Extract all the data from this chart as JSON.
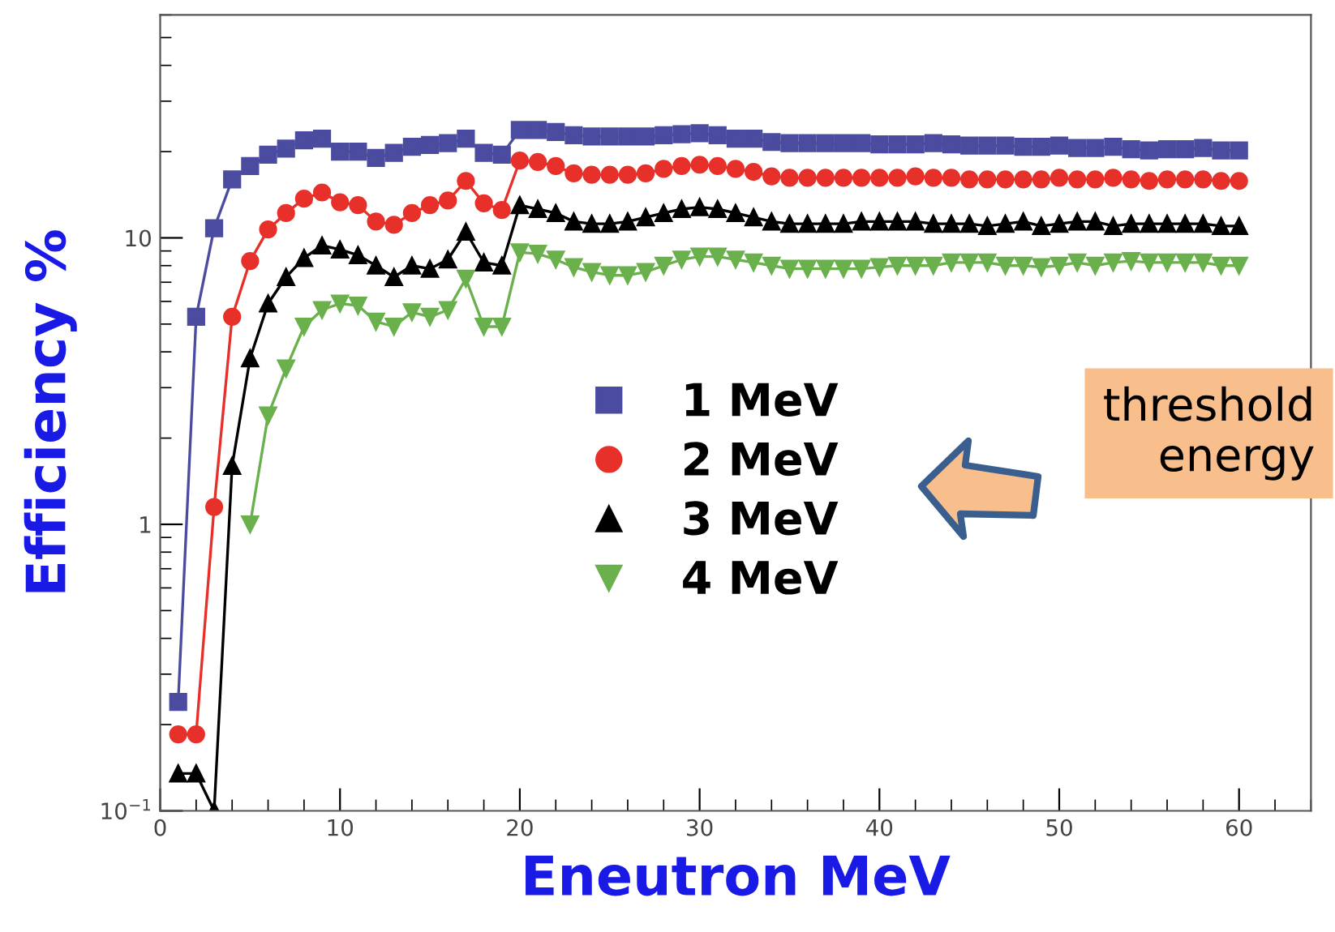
{
  "chart_data": {
    "type": "line",
    "xlabel": "Eneutron MeV",
    "ylabel": "Efficiency %",
    "x": [
      1,
      2,
      3,
      4,
      5,
      6,
      7,
      8,
      9,
      10,
      11,
      12,
      13,
      14,
      15,
      16,
      17,
      18,
      19,
      20,
      21,
      22,
      23,
      24,
      25,
      26,
      27,
      28,
      29,
      30,
      31,
      32,
      33,
      34,
      35,
      36,
      37,
      38,
      39,
      40,
      41,
      42,
      43,
      44,
      45,
      46,
      47,
      48,
      49,
      50,
      51,
      52,
      53,
      54,
      55,
      56,
      57,
      58,
      59,
      60
    ],
    "series": [
      {
        "name": "1 MeV",
        "color": "#4b4ba0",
        "marker": "square",
        "values": [
          0.24,
          5.3,
          10.8,
          16,
          17.8,
          19.5,
          20.5,
          21.9,
          22.2,
          20,
          20,
          19,
          19.8,
          20.8,
          21.1,
          21.4,
          22.2,
          19.8,
          19.5,
          23.8,
          23.8,
          23.4,
          22.8,
          22.6,
          22.6,
          22.6,
          22.6,
          22.8,
          23.0,
          23.2,
          22.8,
          22.2,
          22.2,
          21.6,
          21.4,
          21.4,
          21.4,
          21.4,
          21.4,
          21.2,
          21.2,
          21.2,
          21.4,
          21.2,
          21.0,
          21.0,
          21.0,
          20.8,
          20.8,
          21.0,
          20.6,
          20.6,
          20.8,
          20.4,
          20.2,
          20.4,
          20.4,
          20.6,
          20.2,
          20.2
        ]
      },
      {
        "name": "2 MeV",
        "color": "#e8302a",
        "marker": "circle",
        "values": [
          0.185,
          0.185,
          1.15,
          5.3,
          8.3,
          10.7,
          12.2,
          13.7,
          14.4,
          13.3,
          13.0,
          11.4,
          11.1,
          12.2,
          13.0,
          13.5,
          15.8,
          13.2,
          12.5,
          18.6,
          18.4,
          17.8,
          16.8,
          16.6,
          16.6,
          16.6,
          16.8,
          17.4,
          17.8,
          18.0,
          17.8,
          17.4,
          17.0,
          16.4,
          16.2,
          16.2,
          16.2,
          16.2,
          16.2,
          16.2,
          16.2,
          16.4,
          16.2,
          16.2,
          16.0,
          16.0,
          16.0,
          16.0,
          16.0,
          16.2,
          16.0,
          16.0,
          16.2,
          16.0,
          15.8,
          16.0,
          16.0,
          16.0,
          15.8,
          15.8
        ]
      },
      {
        "name": "3 MeV",
        "color": "#000000",
        "marker": "triangle",
        "values": [
          0.135,
          0.135,
          0.1,
          1.6,
          3.8,
          5.9,
          7.3,
          8.5,
          9.4,
          9.1,
          8.7,
          8.0,
          7.3,
          8.0,
          7.8,
          8.4,
          10.5,
          8.2,
          8.0,
          13.0,
          12.6,
          12.2,
          11.4,
          11.2,
          11.2,
          11.4,
          11.8,
          12.2,
          12.6,
          12.8,
          12.6,
          12.2,
          11.8,
          11.4,
          11.2,
          11.2,
          11.2,
          11.2,
          11.4,
          11.4,
          11.4,
          11.4,
          11.2,
          11.2,
          11.2,
          11.0,
          11.2,
          11.4,
          11.0,
          11.2,
          11.4,
          11.4,
          11.0,
          11.2,
          11.2,
          11.2,
          11.2,
          11.2,
          11.0,
          11.0
        ]
      },
      {
        "name": "4 MeV",
        "color": "#6ab04c",
        "marker": "triangle-down",
        "values": [
          null,
          null,
          null,
          null,
          1.0,
          2.4,
          3.5,
          4.9,
          5.6,
          5.9,
          5.8,
          5.1,
          4.9,
          5.5,
          5.3,
          5.6,
          7.2,
          4.9,
          4.9,
          8.9,
          8.8,
          8.4,
          7.9,
          7.6,
          7.4,
          7.4,
          7.6,
          8.0,
          8.4,
          8.6,
          8.6,
          8.4,
          8.2,
          8.0,
          7.8,
          7.8,
          7.8,
          7.8,
          7.8,
          7.9,
          8.0,
          8.0,
          8.0,
          8.2,
          8.2,
          8.2,
          8.0,
          8.0,
          7.9,
          8.0,
          8.2,
          8.0,
          8.2,
          8.3,
          8.2,
          8.2,
          8.2,
          8.2,
          8.0,
          8.0
        ]
      }
    ],
    "log": "y",
    "xlim": [
      0,
      64
    ],
    "ylim": [
      0.1,
      60
    ],
    "xticks": [
      0,
      10,
      20,
      30,
      40,
      50,
      60
    ],
    "yticks": [
      {
        "value": 0.1,
        "label": "10$^{−1}$"
      },
      1,
      10
    ],
    "grid": false,
    "legend": "center",
    "line_style": "solid",
    "annotations": [
      "threshold\nenergy"
    ]
  }
}
